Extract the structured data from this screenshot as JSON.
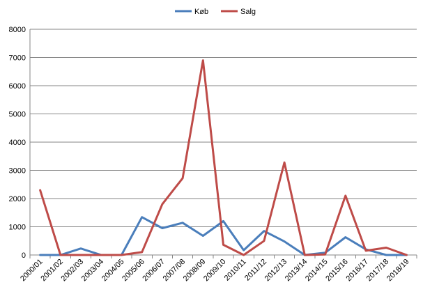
{
  "chart_data": {
    "type": "line",
    "title": "",
    "xlabel": "",
    "ylabel": "",
    "categories": [
      "2000/01",
      "2001/02",
      "2002/03",
      "2003/04",
      "2004/05",
      "2005/06",
      "2006/07",
      "2007/08",
      "2008/09",
      "2009/10",
      "2010/11",
      "2011/12",
      "2012/13",
      "2013/14",
      "2014/15",
      "2015/16",
      "2016/17",
      "2017/18",
      "2018/19"
    ],
    "ylim": [
      0,
      8000
    ],
    "yticks": [
      0,
      1000,
      2000,
      3000,
      4000,
      5000,
      6000,
      7000,
      8000
    ],
    "grid": true,
    "legend_position": "top-center",
    "series": [
      {
        "name": "Køb",
        "color": "#4a7ebb",
        "values": [
          0,
          0,
          230,
          0,
          0,
          1340,
          950,
          1140,
          680,
          1200,
          170,
          850,
          480,
          0,
          80,
          630,
          200,
          0,
          0
        ]
      },
      {
        "name": "Salg",
        "color": "#be4b48",
        "values": [
          2300,
          0,
          0,
          0,
          0,
          100,
          1800,
          2720,
          6900,
          360,
          0,
          500,
          3280,
          0,
          20,
          2100,
          150,
          260,
          0
        ]
      }
    ]
  }
}
